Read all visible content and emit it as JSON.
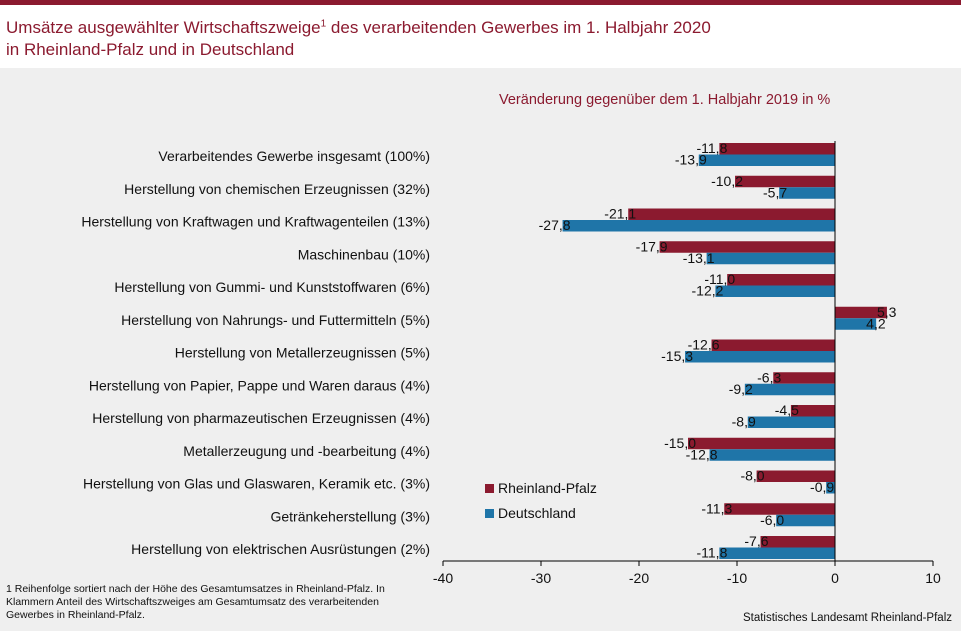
{
  "title": {
    "line1_before": "Umsätze ausgewählter Wirtschaftszweige",
    "footnote_marker": "1",
    "line1_after": " des verarbeitenden Gewerbes im 1. Halbjahr 2020",
    "line2": "in Rheinland-Pfalz und in Deutschland"
  },
  "footnote": "1 Reihenfolge sortiert nach der Höhe des Gesamtumsatzes in Rheinland-Pfalz. In Klammern Anteil des Wirtschaftszweiges am Gesamtumsatz des verarbeitenden Gewerbes in Rheinland-Pfalz.",
  "source": "Statistisches Landesamt Rheinland-Pfalz",
  "colors": {
    "rheinland_pfalz": "#8b1a2f",
    "deutschland": "#1f75a8",
    "accent": "#8b1a2f"
  },
  "chart_data": {
    "type": "bar",
    "orientation": "horizontal",
    "subtitle": "Veränderung gegenüber dem 1. Halbjahr 2019  in %",
    "categories": [
      "Verarbeitendes Gewerbe insgesamt (100%)",
      "Herstellung von chemischen Erzeugnissen (32%)",
      "Herstellung von Kraftwagen und Kraftwagenteilen (13%)",
      "Maschinenbau (10%)",
      "Herstellung von Gummi- und Kunststoffwaren (6%)",
      "Herstellung von Nahrungs- und Futtermitteln (5%)",
      "Herstellung von Metallerzeugnissen (5%)",
      "Herstellung von Papier, Pappe und Waren daraus (4%)",
      "Herstellung von pharmazeutischen Erzeugnissen (4%)",
      "Metallerzeugung und -bearbeitung (4%)",
      "Herstellung von Glas und Glaswaren, Keramik etc. (3%)",
      "Getränkeherstellung (3%)",
      "Herstellung von elektrischen Ausrüstungen (2%)"
    ],
    "series": [
      {
        "name": "Rheinland-Pfalz",
        "values": [
          -11.8,
          -10.2,
          -21.1,
          -17.9,
          -11.0,
          5.3,
          -12.6,
          -6.3,
          -4.5,
          -15.0,
          -8.0,
          -11.3,
          -7.6
        ],
        "labels": [
          "-11,8",
          "-10,2",
          "-21,1",
          "-17,9",
          "-11,0",
          "5,3",
          "-12,6",
          "-6,3",
          "-4,5",
          "-15,0",
          "-8,0",
          "-11,3",
          "-7,6"
        ]
      },
      {
        "name": "Deutschland",
        "values": [
          -13.9,
          -5.7,
          -27.8,
          -13.1,
          -12.2,
          4.2,
          -15.3,
          -9.2,
          -8.9,
          -12.8,
          -0.9,
          -6.0,
          -11.8
        ],
        "labels": [
          "-13,9",
          "-5,7",
          "-27,8",
          "-13,1",
          "-12,2",
          "4,2",
          "-15,3",
          "-9,2",
          "-8,9",
          "-12,8",
          "-0,9",
          "-6,0",
          "-11,8"
        ]
      }
    ],
    "xlim": [
      -40,
      10
    ],
    "xticks": [
      -40,
      -30,
      -20,
      -10,
      0,
      10
    ],
    "xtick_labels": [
      "-40",
      "-30",
      "-20",
      "-10",
      "0",
      "10"
    ],
    "grid": false,
    "legend_position": "bottom-center"
  }
}
